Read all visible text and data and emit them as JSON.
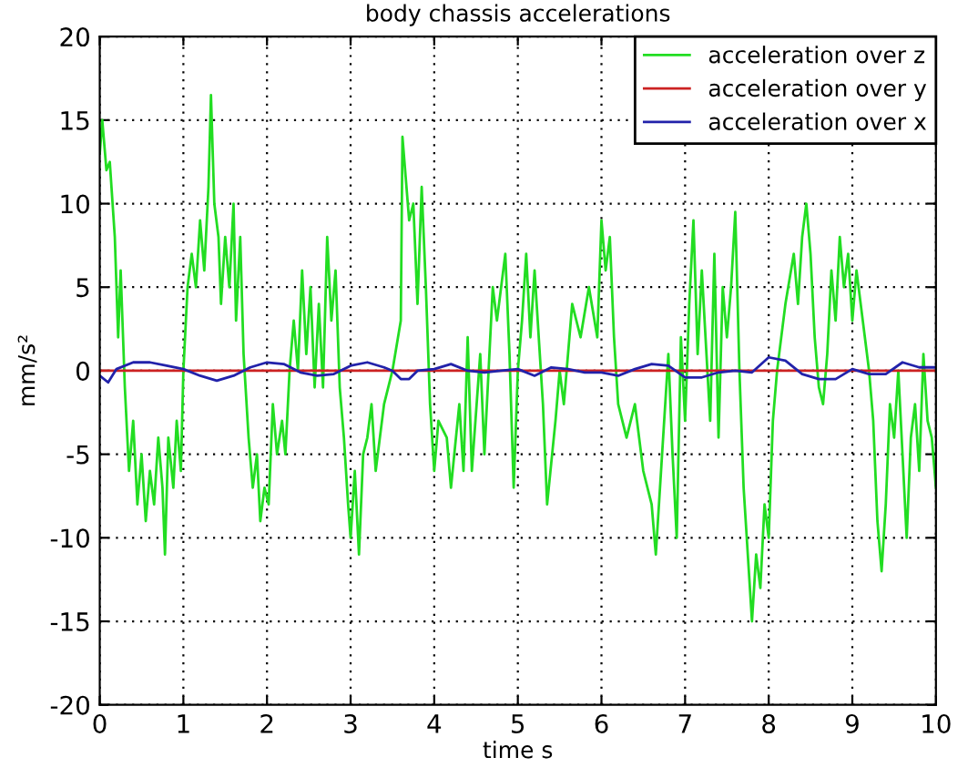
{
  "chart_data": {
    "type": "line",
    "title": "body chassis accelerations",
    "xlabel": "time s",
    "ylabel": "mm/s²",
    "xlim": [
      0,
      10
    ],
    "xticks": [
      0,
      1,
      2,
      3,
      4,
      5,
      6,
      7,
      8,
      9,
      10
    ],
    "ylim": [
      -20,
      20
    ],
    "yticks": [
      -20,
      -15,
      -10,
      -5,
      0,
      5,
      10,
      15,
      20
    ],
    "grid": true,
    "legend": "top right",
    "line_style": "solid",
    "marker": "none",
    "series": [
      {
        "name": "acceleration over z",
        "color": "#22dd22",
        "x": [
          0.0,
          0.03,
          0.08,
          0.12,
          0.18,
          0.22,
          0.25,
          0.3,
          0.35,
          0.4,
          0.45,
          0.5,
          0.55,
          0.6,
          0.65,
          0.7,
          0.75,
          0.78,
          0.82,
          0.88,
          0.92,
          0.97,
          1.0,
          1.05,
          1.1,
          1.15,
          1.2,
          1.25,
          1.3,
          1.33,
          1.37,
          1.42,
          1.45,
          1.5,
          1.55,
          1.6,
          1.63,
          1.68,
          1.72,
          1.78,
          1.83,
          1.88,
          1.92,
          1.97,
          2.02,
          2.07,
          2.12,
          2.18,
          2.22,
          2.27,
          2.32,
          2.37,
          2.42,
          2.47,
          2.52,
          2.57,
          2.62,
          2.67,
          2.72,
          2.77,
          2.82,
          2.87,
          2.92,
          2.97,
          3.0,
          3.05,
          3.1,
          3.15,
          3.2,
          3.25,
          3.3,
          3.4,
          3.5,
          3.6,
          3.62,
          3.7,
          3.75,
          3.8,
          3.85,
          3.9,
          3.95,
          4.0,
          4.05,
          4.15,
          4.2,
          4.3,
          4.35,
          4.4,
          4.45,
          4.55,
          4.6,
          4.7,
          4.75,
          4.85,
          4.9,
          4.95,
          5.0,
          5.05,
          5.1,
          5.15,
          5.2,
          5.3,
          5.35,
          5.45,
          5.5,
          5.55,
          5.65,
          5.75,
          5.85,
          5.95,
          6.0,
          6.05,
          6.1,
          6.15,
          6.2,
          6.3,
          6.4,
          6.5,
          6.6,
          6.65,
          6.7,
          6.75,
          6.8,
          6.85,
          6.9,
          6.95,
          7.0,
          7.05,
          7.1,
          7.15,
          7.2,
          7.3,
          7.35,
          7.4,
          7.45,
          7.5,
          7.55,
          7.6,
          7.65,
          7.7,
          7.75,
          7.8,
          7.85,
          7.9,
          7.95,
          8.0,
          8.05,
          8.1,
          8.2,
          8.3,
          8.35,
          8.4,
          8.45,
          8.5,
          8.55,
          8.6,
          8.65,
          8.7,
          8.75,
          8.8,
          8.85,
          8.9,
          8.95,
          9.0,
          9.05,
          9.1,
          9.15,
          9.2,
          9.25,
          9.3,
          9.35,
          9.4,
          9.45,
          9.5,
          9.55,
          9.6,
          9.65,
          9.7,
          9.75,
          9.8,
          9.85,
          9.9,
          9.95,
          10.0
        ],
        "values": [
          13,
          15,
          12,
          12.5,
          8,
          2,
          6,
          -1,
          -6,
          -3,
          -8,
          -5,
          -9,
          -6,
          -8,
          -4,
          -7,
          -11,
          -4,
          -7,
          -3,
          -6,
          0,
          5,
          7,
          5,
          9,
          6,
          11,
          16.5,
          10,
          8,
          4,
          8,
          5,
          10,
          3,
          8,
          1,
          -4,
          -7,
          -5,
          -9,
          -7,
          -8,
          -2,
          -5,
          -3,
          -5,
          0,
          3,
          0,
          6,
          1,
          5,
          -1,
          4,
          -1,
          8,
          3,
          6,
          -1,
          -4,
          -8,
          -10,
          -6,
          -11,
          -5,
          -4,
          -2,
          -6,
          -2,
          0,
          3,
          14,
          9,
          10,
          4,
          11,
          5,
          -2,
          -6,
          -3,
          -4,
          -7,
          -2,
          -6,
          2,
          -6,
          1,
          -5,
          5,
          3,
          7,
          1,
          -7,
          0,
          3,
          7,
          2,
          6,
          -2,
          -8,
          -3,
          0,
          -2,
          4,
          2,
          5,
          2,
          9,
          6,
          8,
          2,
          -2,
          -4,
          -2,
          -6,
          -8,
          -11,
          -7,
          -3,
          1,
          -5,
          -10,
          2,
          -3,
          4,
          9,
          1,
          6,
          -3,
          7,
          -4,
          5,
          2,
          5,
          9.5,
          0,
          -7,
          -11,
          -15,
          -11,
          -13,
          -8,
          -10,
          -3,
          0,
          4,
          7,
          4,
          8,
          10,
          7,
          2,
          -1,
          -2,
          1,
          6,
          3,
          8,
          5,
          7,
          3,
          6,
          4,
          2,
          0,
          -3,
          -9,
          -12,
          -8,
          -2,
          -4,
          0,
          -5,
          -10,
          -4,
          -2,
          -6,
          1,
          -3,
          -4,
          -7
        ]
      },
      {
        "name": "acceleration over y",
        "color": "#cc2222",
        "x": [
          0,
          2,
          4,
          6,
          8,
          10
        ],
        "values": [
          0,
          0,
          0,
          0,
          0,
          0
        ]
      },
      {
        "name": "acceleration over x",
        "color": "#2222aa",
        "x": [
          0,
          0.1,
          0.2,
          0.4,
          0.6,
          0.8,
          1.0,
          1.2,
          1.4,
          1.6,
          1.8,
          2.0,
          2.2,
          2.4,
          2.6,
          2.8,
          3.0,
          3.2,
          3.4,
          3.5,
          3.6,
          3.7,
          3.8,
          4.0,
          4.2,
          4.4,
          4.6,
          4.8,
          5.0,
          5.2,
          5.4,
          5.6,
          5.8,
          6.0,
          6.2,
          6.4,
          6.6,
          6.8,
          7.0,
          7.2,
          7.4,
          7.6,
          7.8,
          8.0,
          8.2,
          8.4,
          8.6,
          8.8,
          9.0,
          9.2,
          9.4,
          9.6,
          9.8,
          10
        ],
        "values": [
          -0.3,
          -0.7,
          0.1,
          0.5,
          0.5,
          0.3,
          0.1,
          -0.3,
          -0.6,
          -0.3,
          0.2,
          0.5,
          0.4,
          -0.1,
          -0.3,
          -0.2,
          0.3,
          0.5,
          0.2,
          0,
          -0.5,
          -0.5,
          0,
          0.1,
          0.4,
          0,
          -0.1,
          0,
          0.1,
          -0.3,
          0.2,
          0.1,
          -0.1,
          -0.1,
          -0.3,
          0.1,
          0.4,
          0.3,
          -0.4,
          -0.4,
          -0.1,
          0,
          -0.1,
          0.8,
          0.6,
          -0.2,
          -0.5,
          -0.5,
          0.1,
          -0.2,
          -0.2,
          0.5,
          0.2,
          0.2
        ]
      }
    ]
  }
}
